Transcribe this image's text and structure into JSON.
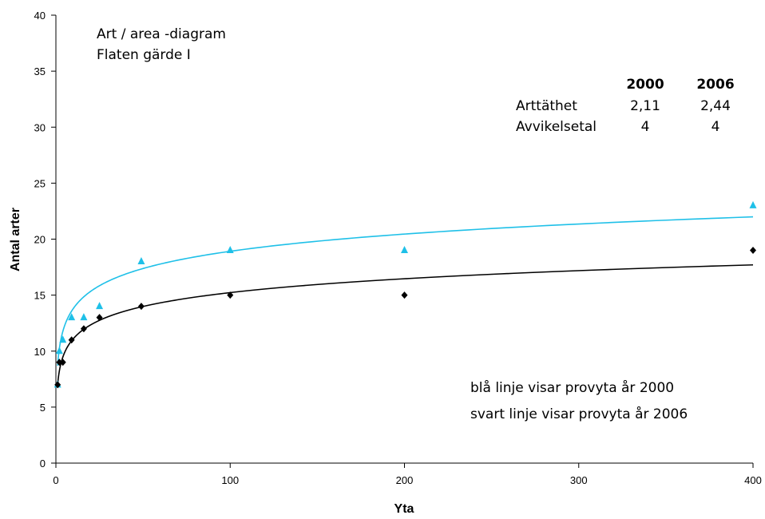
{
  "chart_data": {
    "type": "scatter",
    "title_lines": [
      "Art / area -diagram",
      "Flaten gärde I"
    ],
    "xlabel": "Yta",
    "ylabel": "Antal arter",
    "xlim": [
      0,
      400
    ],
    "ylim": [
      0,
      40
    ],
    "xticks": [
      0,
      100,
      200,
      300,
      400
    ],
    "yticks": [
      0,
      5,
      10,
      15,
      20,
      25,
      30,
      35,
      40
    ],
    "grid": false,
    "series": [
      {
        "marker": "triangle",
        "color": "#1fc0e8",
        "x": [
          1,
          2,
          4,
          9,
          16,
          25,
          49,
          100,
          200,
          400
        ],
        "y": [
          7,
          10,
          11,
          13,
          13,
          14,
          18,
          19,
          19,
          23
        ],
        "trend": {
          "type": "log",
          "a": 8.7,
          "b": 2.218
        }
      },
      {
        "marker": "diamond",
        "color": "#000000",
        "x": [
          1,
          2,
          4,
          9,
          16,
          25,
          49,
          100,
          200,
          400
        ],
        "y": [
          7,
          9,
          9,
          11,
          12,
          13,
          14,
          15,
          15,
          19
        ],
        "trend": {
          "type": "log",
          "a": 7.0,
          "b": 1.786
        }
      }
    ],
    "stats_table": {
      "columns": [
        "",
        "2000",
        "2006"
      ],
      "rows": [
        [
          "Arttäthet",
          "2,11",
          "2,44"
        ],
        [
          "Avvikelsetal",
          "4",
          "4"
        ]
      ]
    },
    "annotations": [
      "blå linje visar provyta år 2000",
      "svart linje visar provyta år 2006"
    ]
  }
}
